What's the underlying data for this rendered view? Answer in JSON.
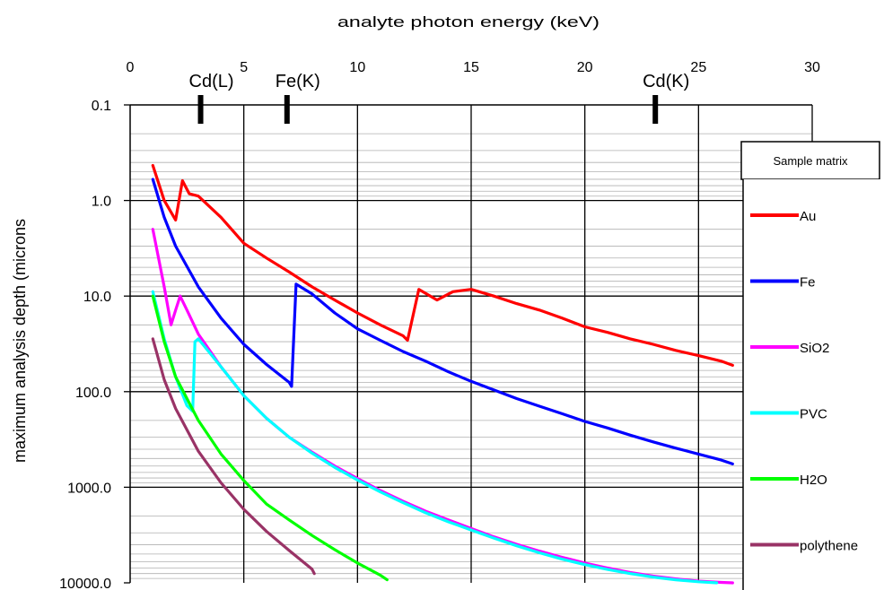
{
  "chart_data": {
    "type": "line",
    "title": "",
    "xlabel": "analyte photon energy (keV)",
    "ylabel": "maximum analysis depth (microns",
    "xlim": [
      0,
      30
    ],
    "ylim": [
      0.1,
      10000.0
    ],
    "y_scale": "log",
    "y_reversed": true,
    "x_axis_position": "top",
    "x_ticks": [
      "0",
      "5",
      "10",
      "15",
      "20",
      "25",
      "30"
    ],
    "y_ticks": [
      "0.1",
      "1.0",
      "10.0",
      "100.0",
      "1000.0",
      "10000.0"
    ],
    "grid": true,
    "legend_title": "Sample matrix",
    "legend_position": "right",
    "markers": [
      {
        "label": "Cd(L)",
        "x": 3.1
      },
      {
        "label": "Fe(K)",
        "x": 6.9
      },
      {
        "label": "Cd(K)",
        "x": 23.1
      }
    ],
    "series": [
      {
        "name": "Au",
        "color": "#ff0000",
        "points": [
          [
            1.0,
            0.43
          ],
          [
            1.5,
            1.0
          ],
          [
            2.0,
            1.6
          ],
          [
            2.3,
            0.62
          ],
          [
            2.6,
            0.85
          ],
          [
            3.0,
            0.9
          ],
          [
            4.0,
            1.5
          ],
          [
            5.0,
            2.8
          ],
          [
            6.0,
            4.0
          ],
          [
            7.0,
            5.6
          ],
          [
            8.0,
            8.0
          ],
          [
            9.0,
            11.0
          ],
          [
            10.0,
            15.0
          ],
          [
            11.0,
            20.0
          ],
          [
            12.0,
            26.0
          ],
          [
            12.2,
            29.0
          ],
          [
            12.7,
            8.5
          ],
          [
            13.5,
            11.0
          ],
          [
            14.2,
            9.0
          ],
          [
            15.0,
            8.5
          ],
          [
            16.0,
            10.0
          ],
          [
            17.0,
            12.0
          ],
          [
            18.0,
            14.0
          ],
          [
            19.0,
            17.0
          ],
          [
            20.0,
            21.0
          ],
          [
            21.0,
            24.0
          ],
          [
            22.0,
            28.0
          ],
          [
            23.0,
            32.0
          ],
          [
            24.0,
            37.0
          ],
          [
            25.0,
            42.0
          ],
          [
            26.0,
            48.0
          ],
          [
            26.5,
            53.0
          ]
        ]
      },
      {
        "name": "Fe",
        "color": "#0000ff",
        "points": [
          [
            1.0,
            0.6
          ],
          [
            1.5,
            1.5
          ],
          [
            2.0,
            3.0
          ],
          [
            3.0,
            8.0
          ],
          [
            4.0,
            17.0
          ],
          [
            5.0,
            32.0
          ],
          [
            6.0,
            52.0
          ],
          [
            7.0,
            80.0
          ],
          [
            7.1,
            88.0
          ],
          [
            7.3,
            7.5
          ],
          [
            8.0,
            9.5
          ],
          [
            9.0,
            15.0
          ],
          [
            10.0,
            22.0
          ],
          [
            11.0,
            29.0
          ],
          [
            12.0,
            38.0
          ],
          [
            13.0,
            48.0
          ],
          [
            14.0,
            62.0
          ],
          [
            15.0,
            78.0
          ],
          [
            16.0,
            96.0
          ],
          [
            17.0,
            118.0
          ],
          [
            18.0,
            142.0
          ],
          [
            19.0,
            170.0
          ],
          [
            20.0,
            205.0
          ],
          [
            21.0,
            240.0
          ],
          [
            22.0,
            285.0
          ],
          [
            23.0,
            335.0
          ],
          [
            24.0,
            390.0
          ],
          [
            25.0,
            450.0
          ],
          [
            26.0,
            520.0
          ],
          [
            26.5,
            570.0
          ]
        ]
      },
      {
        "name": "SiO2",
        "color": "#ff00ff",
        "points": [
          [
            1.0,
            2.0
          ],
          [
            1.5,
            8.0
          ],
          [
            1.8,
            20.0
          ],
          [
            2.0,
            14.0
          ],
          [
            2.2,
            10.0
          ],
          [
            2.5,
            14.0
          ],
          [
            3.0,
            25.0
          ],
          [
            4.0,
            55.0
          ],
          [
            5.0,
            110.0
          ],
          [
            6.0,
            190.0
          ],
          [
            7.0,
            300.0
          ],
          [
            8.0,
            430.0
          ],
          [
            9.0,
            600.0
          ],
          [
            10.0,
            810.0
          ],
          [
            11.0,
            1080.0
          ],
          [
            12.0,
            1400.0
          ],
          [
            13.0,
            1780.0
          ],
          [
            14.0,
            2200.0
          ],
          [
            15.0,
            2700.0
          ],
          [
            16.0,
            3300.0
          ],
          [
            17.0,
            3950.0
          ],
          [
            18.0,
            4650.0
          ],
          [
            19.0,
            5400.0
          ],
          [
            20.0,
            6200.0
          ],
          [
            21.0,
            7000.0
          ],
          [
            22.0,
            7800.0
          ],
          [
            23.0,
            8500.0
          ],
          [
            24.0,
            9100.0
          ],
          [
            25.0,
            9600.0
          ],
          [
            26.0,
            9900.0
          ],
          [
            26.5,
            10000.0
          ]
        ]
      },
      {
        "name": "PVC",
        "color": "#00ffff",
        "points": [
          [
            1.0,
            9.0
          ],
          [
            1.5,
            28.0
          ],
          [
            2.0,
            70.0
          ],
          [
            2.5,
            140.0
          ],
          [
            2.75,
            160.0
          ],
          [
            2.85,
            30.0
          ],
          [
            3.0,
            28.0
          ],
          [
            4.0,
            55.0
          ],
          [
            5.0,
            110.0
          ],
          [
            6.0,
            190.0
          ],
          [
            7.0,
            300.0
          ],
          [
            8.0,
            440.0
          ],
          [
            9.0,
            620.0
          ],
          [
            10.0,
            840.0
          ],
          [
            11.0,
            1120.0
          ],
          [
            12.0,
            1450.0
          ],
          [
            13.0,
            1850.0
          ],
          [
            14.0,
            2300.0
          ],
          [
            15.0,
            2800.0
          ],
          [
            16.0,
            3400.0
          ],
          [
            17.0,
            4100.0
          ],
          [
            18.0,
            4850.0
          ],
          [
            19.0,
            5650.0
          ],
          [
            20.0,
            6450.0
          ],
          [
            21.0,
            7250.0
          ],
          [
            22.0,
            8000.0
          ],
          [
            23.0,
            8700.0
          ],
          [
            24.0,
            9300.0
          ],
          [
            25.0,
            9750.0
          ],
          [
            25.8,
            10000.0
          ]
        ]
      },
      {
        "name": "H2O",
        "color": "#00ff00",
        "points": [
          [
            1.0,
            10.0
          ],
          [
            1.5,
            30.0
          ],
          [
            2.0,
            70.0
          ],
          [
            3.0,
            200.0
          ],
          [
            4.0,
            450.0
          ],
          [
            5.0,
            850.0
          ],
          [
            6.0,
            1500.0
          ],
          [
            7.0,
            2200.0
          ],
          [
            8.0,
            3200.0
          ],
          [
            9.0,
            4500.0
          ],
          [
            10.0,
            6200.0
          ],
          [
            11.0,
            8300.0
          ],
          [
            11.3,
            9300.0
          ]
        ]
      },
      {
        "name": "polythene",
        "color": "#993366",
        "points": [
          [
            1.0,
            28.0
          ],
          [
            1.5,
            75.0
          ],
          [
            2.0,
            150.0
          ],
          [
            3.0,
            420.0
          ],
          [
            4.0,
            900.0
          ],
          [
            5.0,
            1700.0
          ],
          [
            6.0,
            2900.0
          ],
          [
            7.0,
            4600.0
          ],
          [
            8.0,
            7200.0
          ],
          [
            8.1,
            8000.0
          ]
        ]
      }
    ]
  }
}
